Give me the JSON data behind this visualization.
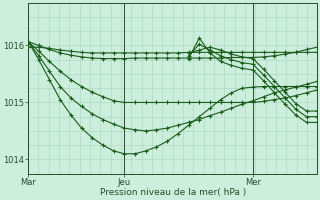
{
  "bg_color": "#cceedd",
  "line_color": "#1a5c1a",
  "grid_color_minor": "#aad4bb",
  "grid_color_major": "#88bb99",
  "axis_color": "#2a4a2a",
  "xlabel": "Pression niveau de la mer( hPa )",
  "ylim": [
    1013.75,
    1016.75
  ],
  "yticks": [
    1014,
    1015,
    1016
  ],
  "xtick_labels": [
    "Mar",
    "Jeu",
    "Mer"
  ],
  "vline_x": [
    0.0,
    0.333,
    0.778
  ],
  "series": [
    {
      "x": [
        0.0,
        0.037,
        0.074,
        0.111,
        0.148,
        0.185,
        0.222,
        0.259,
        0.296,
        0.333,
        0.37,
        0.407,
        0.444,
        0.481,
        0.518,
        0.555,
        0.592,
        0.629,
        0.666,
        0.703,
        0.74,
        0.778,
        0.815,
        0.852,
        0.889,
        0.926,
        0.963,
        1.0
      ],
      "y": [
        1015.97,
        1015.97,
        1015.95,
        1015.92,
        1015.9,
        1015.88,
        1015.87,
        1015.87,
        1015.87,
        1015.87,
        1015.87,
        1015.87,
        1015.87,
        1015.87,
        1015.87,
        1015.88,
        1015.88,
        1015.88,
        1015.88,
        1015.88,
        1015.88,
        1015.88,
        1015.88,
        1015.88,
        1015.88,
        1015.88,
        1015.88,
        1015.88
      ]
    },
    {
      "x": [
        0.0,
        0.037,
        0.074,
        0.111,
        0.148,
        0.185,
        0.222,
        0.259,
        0.296,
        0.333,
        0.37,
        0.407,
        0.444,
        0.481,
        0.518,
        0.555,
        0.592,
        0.629,
        0.666,
        0.703,
        0.74,
        0.778,
        0.815,
        0.852,
        0.889,
        0.926,
        0.963,
        1.0
      ],
      "y": [
        1016.07,
        1016.0,
        1015.93,
        1015.87,
        1015.83,
        1015.8,
        1015.78,
        1015.77,
        1015.77,
        1015.77,
        1015.78,
        1015.78,
        1015.78,
        1015.78,
        1015.78,
        1015.78,
        1015.78,
        1015.78,
        1015.78,
        1015.79,
        1015.79,
        1015.79,
        1015.8,
        1015.82,
        1015.85,
        1015.88,
        1015.93,
        1015.97
      ]
    },
    {
      "x": [
        0.0,
        0.037,
        0.074,
        0.111,
        0.148,
        0.185,
        0.222,
        0.259,
        0.296,
        0.333,
        0.37,
        0.407,
        0.444,
        0.481,
        0.518,
        0.555,
        0.592,
        0.629,
        0.666,
        0.703,
        0.74,
        0.778,
        0.815,
        0.852,
        0.889,
        0.926,
        0.963,
        1.0
      ],
      "y": [
        1016.07,
        1015.9,
        1015.72,
        1015.55,
        1015.4,
        1015.28,
        1015.18,
        1015.1,
        1015.03,
        1015.0,
        1015.0,
        1015.0,
        1015.0,
        1015.0,
        1015.0,
        1015.0,
        1015.0,
        1015.0,
        1015.0,
        1015.0,
        1015.0,
        1015.0,
        1015.02,
        1015.05,
        1015.08,
        1015.12,
        1015.17,
        1015.22
      ]
    },
    {
      "x": [
        0.0,
        0.037,
        0.074,
        0.111,
        0.148,
        0.185,
        0.222,
        0.259,
        0.296,
        0.333,
        0.37,
        0.407,
        0.444,
        0.481,
        0.518,
        0.555,
        0.592,
        0.629,
        0.666,
        0.703,
        0.74,
        0.778,
        0.815,
        0.852,
        0.889,
        0.926,
        0.963,
        1.0
      ],
      "y": [
        1016.07,
        1015.82,
        1015.55,
        1015.28,
        1015.08,
        1014.93,
        1014.8,
        1014.7,
        1014.62,
        1014.55,
        1014.52,
        1014.5,
        1014.52,
        1014.55,
        1014.6,
        1014.65,
        1014.7,
        1014.77,
        1014.83,
        1014.9,
        1014.97,
        1015.03,
        1015.1,
        1015.17,
        1015.22,
        1015.27,
        1015.32,
        1015.37
      ]
    },
    {
      "x": [
        0.0,
        0.037,
        0.074,
        0.111,
        0.148,
        0.185,
        0.222,
        0.259,
        0.296,
        0.333,
        0.37,
        0.407,
        0.444,
        0.481,
        0.518,
        0.555,
        0.592,
        0.629,
        0.666,
        0.703,
        0.74,
        0.778,
        0.815,
        0.852,
        0.889,
        0.926,
        0.963,
        1.0
      ],
      "y": [
        1016.07,
        1015.75,
        1015.4,
        1015.05,
        1014.78,
        1014.55,
        1014.38,
        1014.25,
        1014.15,
        1014.1,
        1014.1,
        1014.15,
        1014.22,
        1014.32,
        1014.45,
        1014.6,
        1014.75,
        1014.9,
        1015.05,
        1015.17,
        1015.25,
        1015.27,
        1015.28,
        1015.28,
        1015.28,
        1015.28,
        1015.28,
        1015.28
      ]
    },
    {
      "x": [
        0.555,
        0.592,
        0.629,
        0.666,
        0.703,
        0.74,
        0.778,
        0.815,
        0.852,
        0.889,
        0.926,
        0.963,
        1.0
      ],
      "y": [
        1015.77,
        1016.13,
        1015.87,
        1015.72,
        1015.65,
        1015.6,
        1015.57,
        1015.38,
        1015.17,
        1014.97,
        1014.78,
        1014.65,
        1014.65
      ]
    },
    {
      "x": [
        0.555,
        0.592,
        0.629,
        0.666,
        0.703,
        0.74,
        0.778,
        0.815,
        0.852,
        0.889,
        0.926,
        0.963,
        1.0
      ],
      "y": [
        1015.82,
        1016.02,
        1015.92,
        1015.82,
        1015.75,
        1015.7,
        1015.67,
        1015.48,
        1015.28,
        1015.08,
        1014.88,
        1014.75,
        1014.75
      ]
    },
    {
      "x": [
        0.555,
        0.592,
        0.629,
        0.666,
        0.703,
        0.74,
        0.778,
        0.815,
        0.852,
        0.889,
        0.926,
        0.963,
        1.0
      ],
      "y": [
        1015.87,
        1015.92,
        1015.97,
        1015.92,
        1015.85,
        1015.8,
        1015.77,
        1015.58,
        1015.38,
        1015.18,
        1014.98,
        1014.85,
        1014.85
      ]
    }
  ],
  "n_xgrid": 28,
  "n_ygrid_minor": 12
}
